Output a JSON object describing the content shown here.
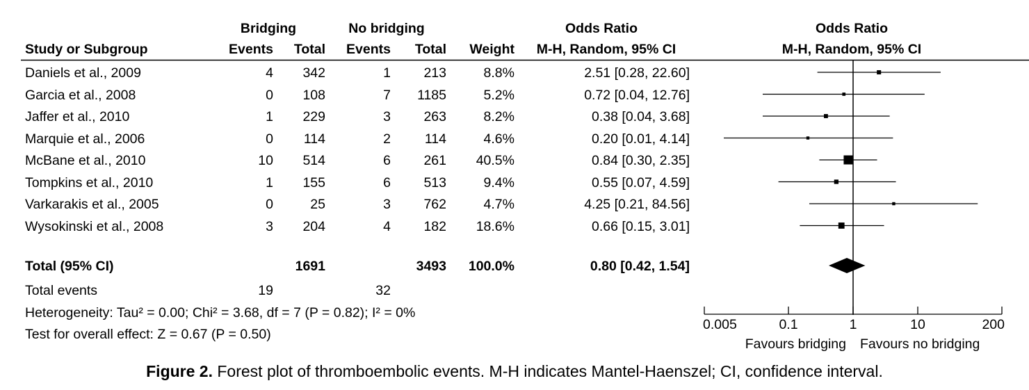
{
  "header": {
    "group1": "Bridging",
    "group2": "No bridging",
    "effect_title": "Odds Ratio",
    "plot_title": "Odds Ratio",
    "col_study": "Study or Subgroup",
    "col_events1": "Events",
    "col_total1": "Total",
    "col_events2": "Events",
    "col_total2": "Total",
    "col_weight": "Weight",
    "col_method": "M-H, Random, 95% CI",
    "plot_method": "M-H, Random, 95% CI"
  },
  "rows": [
    {
      "study": "Daniels et al., 2009",
      "ev1": "4",
      "tot1": "342",
      "ev2": "1",
      "tot2": "213",
      "weight": "8.8%",
      "ci_text": "2.51 [0.28, 22.60]"
    },
    {
      "study": "Garcia et al., 2008",
      "ev1": "0",
      "tot1": "108",
      "ev2": "7",
      "tot2": "1185",
      "weight": "5.2%",
      "ci_text": "0.72 [0.04, 12.76]"
    },
    {
      "study": "Jaffer et al., 2010",
      "ev1": "1",
      "tot1": "229",
      "ev2": "3",
      "tot2": "263",
      "weight": "8.2%",
      "ci_text": "0.38 [0.04, 3.68]"
    },
    {
      "study": "Marquie et al., 2006",
      "ev1": "0",
      "tot1": "114",
      "ev2": "2",
      "tot2": "114",
      "weight": "4.6%",
      "ci_text": "0.20 [0.01, 4.14]"
    },
    {
      "study": "McBane et al., 2010",
      "ev1": "10",
      "tot1": "514",
      "ev2": "6",
      "tot2": "261",
      "weight": "40.5%",
      "ci_text": "0.84 [0.30, 2.35]"
    },
    {
      "study": "Tompkins et al., 2010",
      "ev1": "1",
      "tot1": "155",
      "ev2": "6",
      "tot2": "513",
      "weight": "9.4%",
      "ci_text": "0.55 [0.07, 4.59]"
    },
    {
      "study": "Varkarakis et al., 2005",
      "ev1": "0",
      "tot1": "25",
      "ev2": "3",
      "tot2": "762",
      "weight": "4.7%",
      "ci_text": "4.25 [0.21, 84.56]"
    },
    {
      "study": "Wysokinski et al., 2008",
      "ev1": "3",
      "tot1": "204",
      "ev2": "4",
      "tot2": "182",
      "weight": "18.6%",
      "ci_text": "0.66 [0.15, 3.01]"
    }
  ],
  "total": {
    "label": "Total (95% CI)",
    "tot1": "1691",
    "tot2": "3493",
    "weight": "100.0%",
    "ci_text": "0.80 [0.42, 1.54]"
  },
  "total_events": {
    "label": "Total events",
    "ev1": "19",
    "ev2": "32"
  },
  "heterogeneity": "Heterogeneity: Tau² = 0.00; Chi² = 3.68, df = 7 (P = 0.82); I² = 0%",
  "overall_effect": "Test for overall effect: Z = 0.67 (P = 0.50)",
  "axis": {
    "ticks": [
      {
        "value": 0.005,
        "label": "0.005"
      },
      {
        "value": 0.1,
        "label": "0.1"
      },
      {
        "value": 1,
        "label": "1"
      },
      {
        "value": 10,
        "label": "10"
      },
      {
        "value": 200,
        "label": "200"
      }
    ],
    "favours_left": "Favours bridging",
    "favours_right": "Favours no bridging"
  },
  "caption": {
    "label": "Figure 2.",
    "text": " Forest plot of thromboembolic events. M-H indicates Mantel-Haenszel; CI, confidence interval."
  },
  "chart_data": {
    "type": "forest",
    "scale": "log",
    "xlim": [
      0.005,
      200
    ],
    "reference_line": 1,
    "studies": [
      {
        "name": "Daniels et al., 2009",
        "or": 2.51,
        "lo": 0.28,
        "hi": 22.6,
        "weight": 8.8
      },
      {
        "name": "Garcia et al., 2008",
        "or": 0.72,
        "lo": 0.04,
        "hi": 12.76,
        "weight": 5.2
      },
      {
        "name": "Jaffer et al., 2010",
        "or": 0.38,
        "lo": 0.04,
        "hi": 3.68,
        "weight": 8.2
      },
      {
        "name": "Marquie et al., 2006",
        "or": 0.2,
        "lo": 0.01,
        "hi": 4.14,
        "weight": 4.6
      },
      {
        "name": "McBane et al., 2010",
        "or": 0.84,
        "lo": 0.3,
        "hi": 2.35,
        "weight": 40.5
      },
      {
        "name": "Tompkins et al., 2010",
        "or": 0.55,
        "lo": 0.07,
        "hi": 4.59,
        "weight": 9.4
      },
      {
        "name": "Varkarakis et al., 2005",
        "or": 4.25,
        "lo": 0.21,
        "hi": 84.56,
        "weight": 4.7
      },
      {
        "name": "Wysokinski et al., 2008",
        "or": 0.66,
        "lo": 0.15,
        "hi": 3.01,
        "weight": 18.6
      }
    ],
    "pooled": {
      "or": 0.8,
      "lo": 0.42,
      "hi": 1.54
    }
  }
}
